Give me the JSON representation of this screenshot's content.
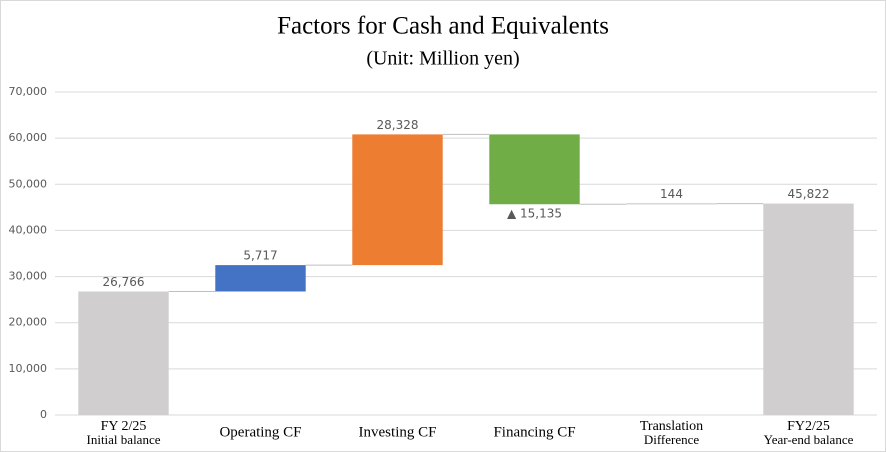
{
  "chart_data": {
    "type": "waterfall",
    "title": "Factors for Cash and Equivalents",
    "subtitle": "(Unit: Million yen)",
    "categories": [
      [
        "FY 2/25",
        "Initial balance"
      ],
      [
        "Operating CF"
      ],
      [
        "Investing CF"
      ],
      [
        "Financing CF"
      ],
      [
        "Translation",
        "Difference"
      ],
      [
        "FY2/25",
        "Year-end balance"
      ]
    ],
    "values": [
      26766,
      5717,
      28328,
      -15135,
      144,
      45822
    ],
    "value_labels": [
      "26,766",
      "5,717",
      "28,328",
      "▲ 15,135",
      "144",
      "45,822"
    ],
    "measure": [
      "absolute",
      "relative",
      "relative",
      "relative",
      "relative",
      "total"
    ],
    "colors": [
      "#d0cece",
      "#4472c4",
      "#ed7d31",
      "#70ad47",
      "#a5a5a5",
      "#d0cece"
    ],
    "ylim": [
      0,
      70000
    ],
    "yticks": [
      0,
      {
        "value": 10000,
        "label": "10,000"
      },
      {
        "value": 20000,
        "label": "20,000"
      },
      {
        "value": 30000,
        "label": "30,000"
      },
      {
        "value": 40000,
        "label": "40,000"
      },
      {
        "value": 50000,
        "label": "50,000"
      },
      {
        "value": 60000,
        "label": "60,000"
      },
      {
        "value": 70000,
        "label": "70,000"
      }
    ],
    "grid": true
  }
}
